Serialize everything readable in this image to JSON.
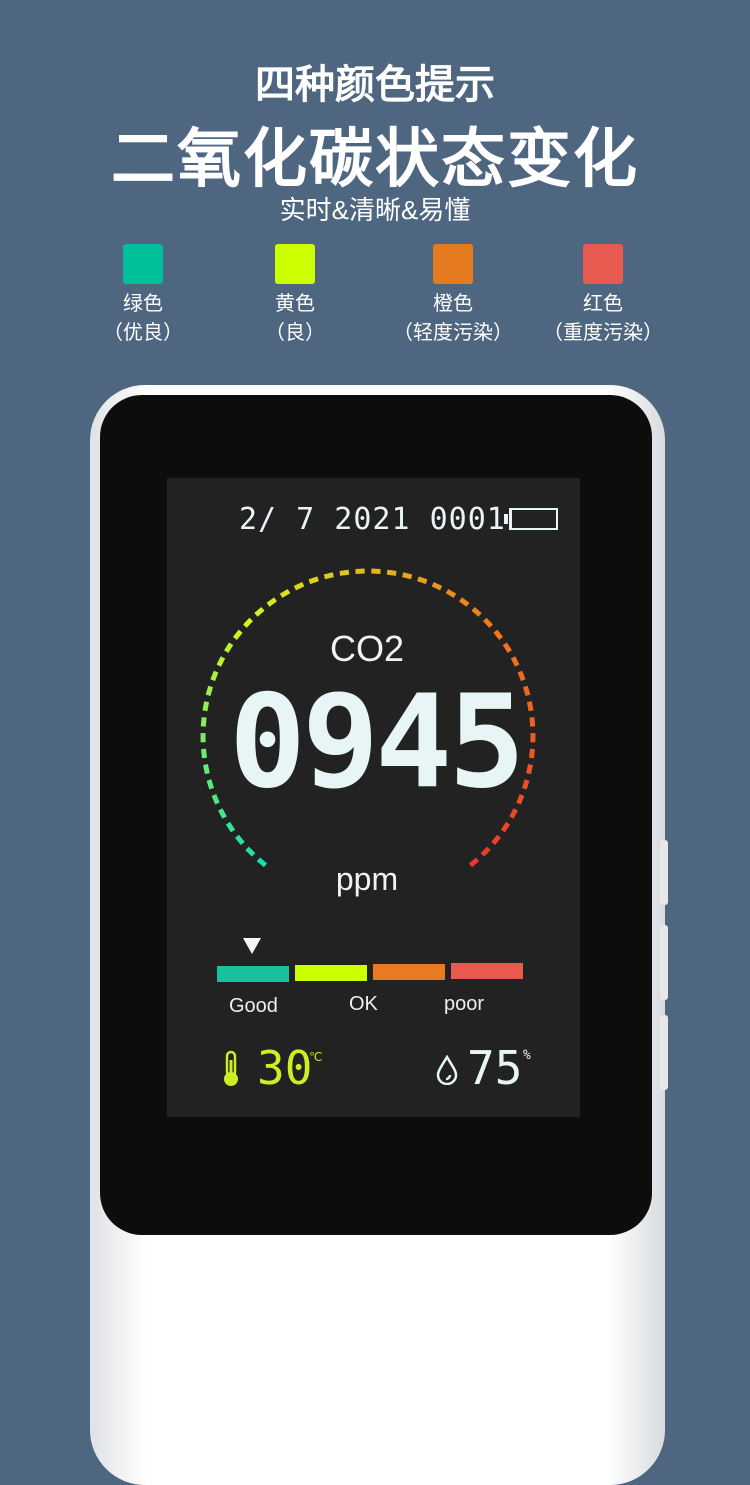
{
  "headline": {
    "line1": "四种颜色提示",
    "line2": "二氧化碳状态变化",
    "subtitle": "实时&清晰&易懂"
  },
  "legend": [
    {
      "color": "#00c099",
      "name": "绿色",
      "desc": "（优良）"
    },
    {
      "color": "#ccff00",
      "name": "黄色",
      "desc": "（良）"
    },
    {
      "color": "#e67a1e",
      "name": "橙色",
      "desc": "（轻度污染）"
    },
    {
      "color": "#e8594f",
      "name": "红色",
      "desc": "（重度污染）"
    }
  ],
  "display": {
    "datetime": "2/ 7 2021 0001",
    "battery_icon": "battery-empty-icon",
    "gas_label": "CO2",
    "value": "0945",
    "unit": "ppm",
    "scale": [
      {
        "label": "Good",
        "color": "#19c19a"
      },
      {
        "label": "OK",
        "color": "#ccff00"
      },
      {
        "label": "poor",
        "color": "#e87a22"
      },
      {
        "label": "",
        "color": "#e8594f"
      }
    ],
    "indicator_level": "Good",
    "temperature": "30",
    "temperature_unit": "℃",
    "temperature_color": "#ccee22",
    "humidity": "75",
    "humidity_unit": "%",
    "gauge_colors": [
      "#16e0b0",
      "#d6f51e",
      "#f07a20",
      "#e83a2a"
    ]
  }
}
